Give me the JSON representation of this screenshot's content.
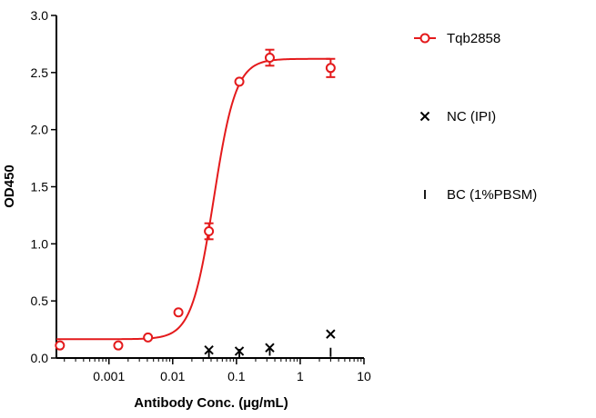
{
  "chart_data": {
    "type": "scatter",
    "xlabel": "Antibody Conc. (µg/mL)",
    "ylabel": "OD450",
    "x_scale": "log",
    "xlim": [
      0.00015,
      10
    ],
    "ylim": [
      0,
      3.0
    ],
    "x_ticks": [
      {
        "value": 0.001,
        "label": "0.001"
      },
      {
        "value": 0.01,
        "label": "0.01"
      },
      {
        "value": 0.1,
        "label": "0.1"
      },
      {
        "value": 1,
        "label": "1"
      },
      {
        "value": 10,
        "label": "10"
      }
    ],
    "y_ticks": [
      {
        "value": 0.0,
        "label": "0.0"
      },
      {
        "value": 0.5,
        "label": "0.5"
      },
      {
        "value": 1.0,
        "label": "1.0"
      },
      {
        "value": 1.5,
        "label": "1.5"
      },
      {
        "value": 2.0,
        "label": "2.0"
      },
      {
        "value": 2.5,
        "label": "2.5"
      },
      {
        "value": 3.0,
        "label": "3.0"
      }
    ],
    "grid": false,
    "legend_position": "right",
    "series": [
      {
        "name": "Tqb2858",
        "color": "#e41a1c",
        "marker": "open-circle",
        "fit_curve": {
          "bottom": 0.165,
          "top": 2.62,
          "ec50": 0.044,
          "hill": 2.5
        },
        "points": [
          {
            "x": 0.00017,
            "y": 0.11,
            "err": 0.0
          },
          {
            "x": 0.0014,
            "y": 0.11,
            "err": 0.0
          },
          {
            "x": 0.0041,
            "y": 0.18,
            "err": 0.0
          },
          {
            "x": 0.0123,
            "y": 0.4,
            "err": 0.0
          },
          {
            "x": 0.037,
            "y": 1.11,
            "err": 0.07
          },
          {
            "x": 0.111,
            "y": 2.42,
            "err": 0.0
          },
          {
            "x": 0.333,
            "y": 2.63,
            "err": 0.07
          },
          {
            "x": 3.0,
            "y": 2.54,
            "err": 0.08
          }
        ]
      },
      {
        "name": "NC (IPI)",
        "color": "#000000",
        "marker": "x",
        "points": [
          {
            "x": 0.037,
            "y": 0.07
          },
          {
            "x": 0.111,
            "y": 0.06
          },
          {
            "x": 0.333,
            "y": 0.09
          },
          {
            "x": 3.0,
            "y": 0.21
          }
        ]
      },
      {
        "name": "BC (1%PBSM)",
        "color": "#000000",
        "marker": "plus",
        "points": [
          {
            "x": 0.037,
            "y": 0.04
          },
          {
            "x": 0.111,
            "y": 0.04
          },
          {
            "x": 0.333,
            "y": 0.06
          },
          {
            "x": 3.0,
            "y": 0.05
          }
        ]
      }
    ]
  }
}
